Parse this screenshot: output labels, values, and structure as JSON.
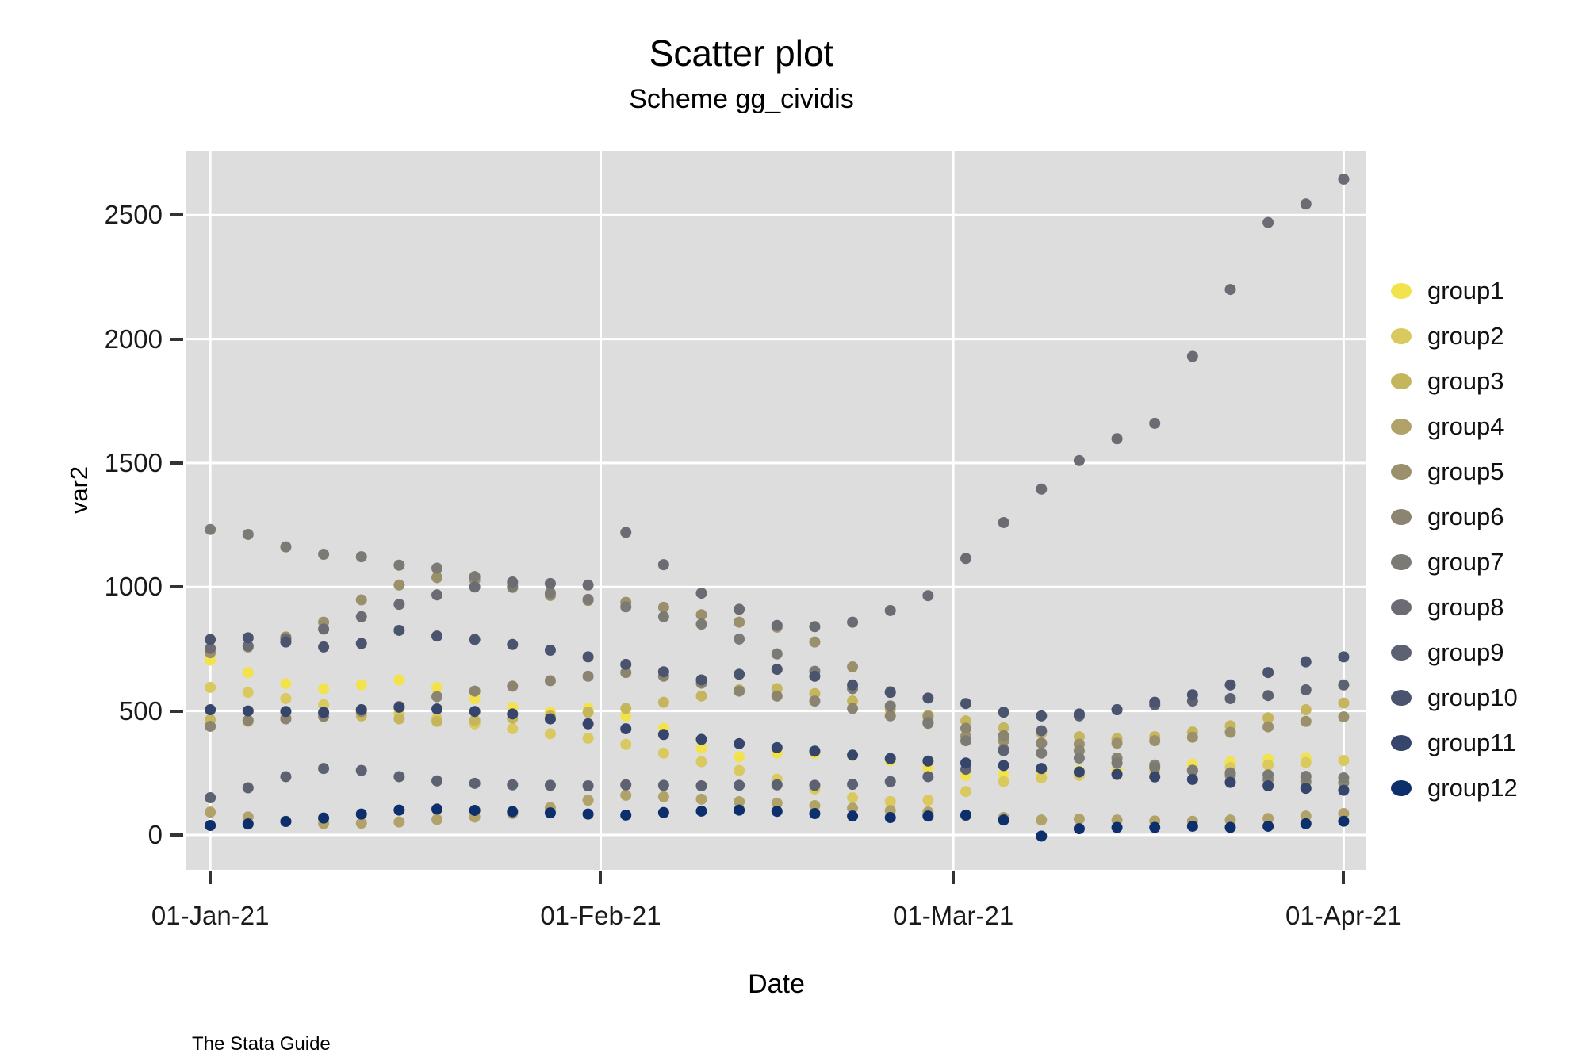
{
  "header": {
    "title": "Scatter plot",
    "subtitle": "Scheme gg_cividis"
  },
  "footer": {
    "note": "The Stata Guide"
  },
  "chart_data": {
    "type": "scatter",
    "title": "Scatter plot",
    "subtitle": "Scheme gg_cividis",
    "xlabel": "Date",
    "ylabel": "var2",
    "legend_position": "right",
    "grid": true,
    "panel_background": "#dedddd",
    "gridline_color": "#ffffff",
    "tick_color": "#333333",
    "marker_radius": 7,
    "xlim_days": [
      -1.9,
      91.8
    ],
    "ylim": [
      -141,
      2760
    ],
    "y_ticks": [
      0,
      500,
      1000,
      1500,
      2000,
      2500
    ],
    "x_ticks": [
      {
        "label": "01-Jan-21",
        "day": 0
      },
      {
        "label": "01-Feb-21",
        "day": 31
      },
      {
        "label": "01-Mar-21",
        "day": 59
      },
      {
        "label": "01-Apr-21",
        "day": 90
      }
    ],
    "x_days": [
      0,
      3,
      6,
      9,
      12,
      15,
      18,
      21,
      24,
      27,
      30,
      33,
      36,
      39,
      42,
      45,
      48,
      51,
      54,
      57,
      60,
      63,
      66,
      69,
      72,
      75,
      78,
      81,
      84,
      87,
      90
    ],
    "series": [
      {
        "name": "group1",
        "color": "#F2E24C",
        "values": [
          705,
          655,
          610,
          590,
          605,
          625,
          595,
          550,
          515,
          495,
          510,
          480,
          430,
          350,
          315,
          330,
          330,
          320,
          300,
          270,
          240,
          245,
          252,
          258,
          265,
          275,
          285,
          295,
          305,
          310,
          300
        ]
      },
      {
        "name": "group2",
        "color": "#D9C95F",
        "values": [
          595,
          575,
          550,
          525,
          505,
          490,
          470,
          448,
          428,
          408,
          390,
          365,
          330,
          295,
          260,
          225,
          185,
          150,
          135,
          140,
          175,
          215,
          230,
          240,
          248,
          255,
          262,
          272,
          282,
          292,
          300
        ]
      },
      {
        "name": "group3",
        "color": "#C5B65D",
        "values": [
          465,
          458,
          472,
          488,
          480,
          468,
          458,
          462,
          470,
          480,
          495,
          510,
          535,
          560,
          585,
          590,
          570,
          540,
          505,
          482,
          460,
          432,
          410,
          396,
          388,
          396,
          415,
          440,
          472,
          505,
          532
        ]
      },
      {
        "name": "group4",
        "color": "#B0A269",
        "values": [
          92,
          72,
          55,
          46,
          47,
          52,
          62,
          72,
          86,
          110,
          140,
          160,
          154,
          144,
          134,
          128,
          118,
          108,
          98,
          92,
          78,
          70,
          60,
          64,
          60,
          56,
          55,
          60,
          66,
          76,
          86
        ]
      },
      {
        "name": "group5",
        "color": "#9B906C",
        "values": [
          735,
          758,
          798,
          858,
          948,
          1008,
          1038,
          1028,
          998,
          966,
          946,
          938,
          918,
          888,
          858,
          838,
          778,
          678,
          578,
          478,
          398,
          380,
          370,
          366,
          370,
          380,
          394,
          414,
          436,
          458,
          476
        ]
      },
      {
        "name": "group6",
        "color": "#8A8470",
        "values": [
          438,
          462,
          468,
          478,
          498,
          518,
          558,
          580,
          600,
          622,
          640,
          655,
          640,
          612,
          580,
          560,
          540,
          510,
          480,
          455,
          430,
          400,
          370,
          340,
          310,
          282,
          260,
          240,
          224,
          214,
          210
        ]
      },
      {
        "name": "group7",
        "color": "#7C7A74",
        "values": [
          1232,
          1212,
          1162,
          1132,
          1122,
          1088,
          1076,
          1042,
          1002,
          976,
          950,
          920,
          880,
          850,
          790,
          730,
          660,
          590,
          520,
          450,
          380,
          345,
          330,
          310,
          290,
          272,
          260,
          250,
          242,
          236,
          230
        ]
      },
      {
        "name": "group8",
        "color": "#6B6B73",
        "values": [
          752,
          762,
          790,
          830,
          880,
          930,
          968,
          1000,
          1020,
          1014,
          1008,
          1220,
          1090,
          975,
          910,
          845,
          840,
          858,
          905,
          965,
          1115,
          1260,
          1395,
          1510,
          1598,
          1660,
          1930,
          2200,
          2470,
          2545,
          2645
        ]
      },
      {
        "name": "group9",
        "color": "#5D6273",
        "values": [
          150,
          190,
          235,
          268,
          260,
          235,
          218,
          208,
          202,
          200,
          198,
          202,
          200,
          198,
          200,
          202,
          200,
          204,
          215,
          235,
          265,
          340,
          420,
          480,
          505,
          525,
          540,
          550,
          562,
          585,
          605
        ]
      },
      {
        "name": "group10",
        "color": "#4A546F",
        "values": [
          788,
          795,
          778,
          758,
          772,
          825,
          802,
          788,
          768,
          745,
          718,
          688,
          658,
          625,
          648,
          668,
          640,
          605,
          575,
          552,
          530,
          495,
          480,
          488,
          505,
          535,
          565,
          605,
          655,
          698,
          718
        ]
      },
      {
        "name": "group11",
        "color": "#36456C",
        "values": [
          505,
          500,
          498,
          494,
          505,
          515,
          508,
          498,
          488,
          468,
          448,
          428,
          405,
          385,
          368,
          352,
          338,
          322,
          308,
          298,
          290,
          280,
          268,
          254,
          244,
          234,
          224,
          212,
          198,
          188,
          180
        ]
      },
      {
        "name": "group12",
        "color": "#0D2F6B",
        "values": [
          38,
          44,
          54,
          68,
          84,
          100,
          104,
          99,
          94,
          89,
          84,
          80,
          90,
          96,
          100,
          95,
          86,
          76,
          70,
          76,
          80,
          60,
          -5,
          25,
          30,
          30,
          35,
          30,
          35,
          45,
          55
        ]
      }
    ]
  }
}
